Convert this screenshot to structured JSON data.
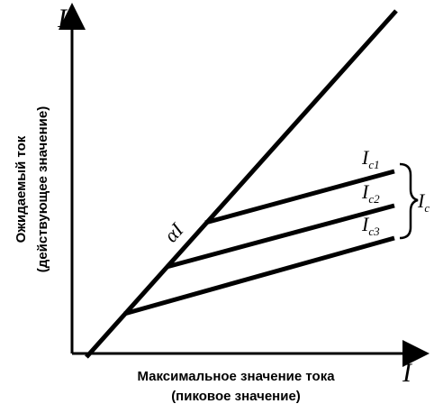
{
  "labels": {
    "y_axis_symbol": "I",
    "x_axis_symbol": "I",
    "y_axis_title_line1": "Ожидаемый ток",
    "y_axis_title_line2": "(действующее значение)",
    "x_axis_title_line1": "Максимальное значение тока",
    "x_axis_title_line2": "(пиковое значение)",
    "diagonal_label": "αI",
    "curve_label_1": "I",
    "curve_label_1_sub": "c1",
    "curve_label_2": "I",
    "curve_label_2_sub": "c2",
    "curve_label_3": "I",
    "curve_label_3_sub": "c3",
    "group_label": "I",
    "group_label_sub": "c"
  },
  "colors": {
    "stroke": "#000000",
    "background": "#ffffff"
  }
}
